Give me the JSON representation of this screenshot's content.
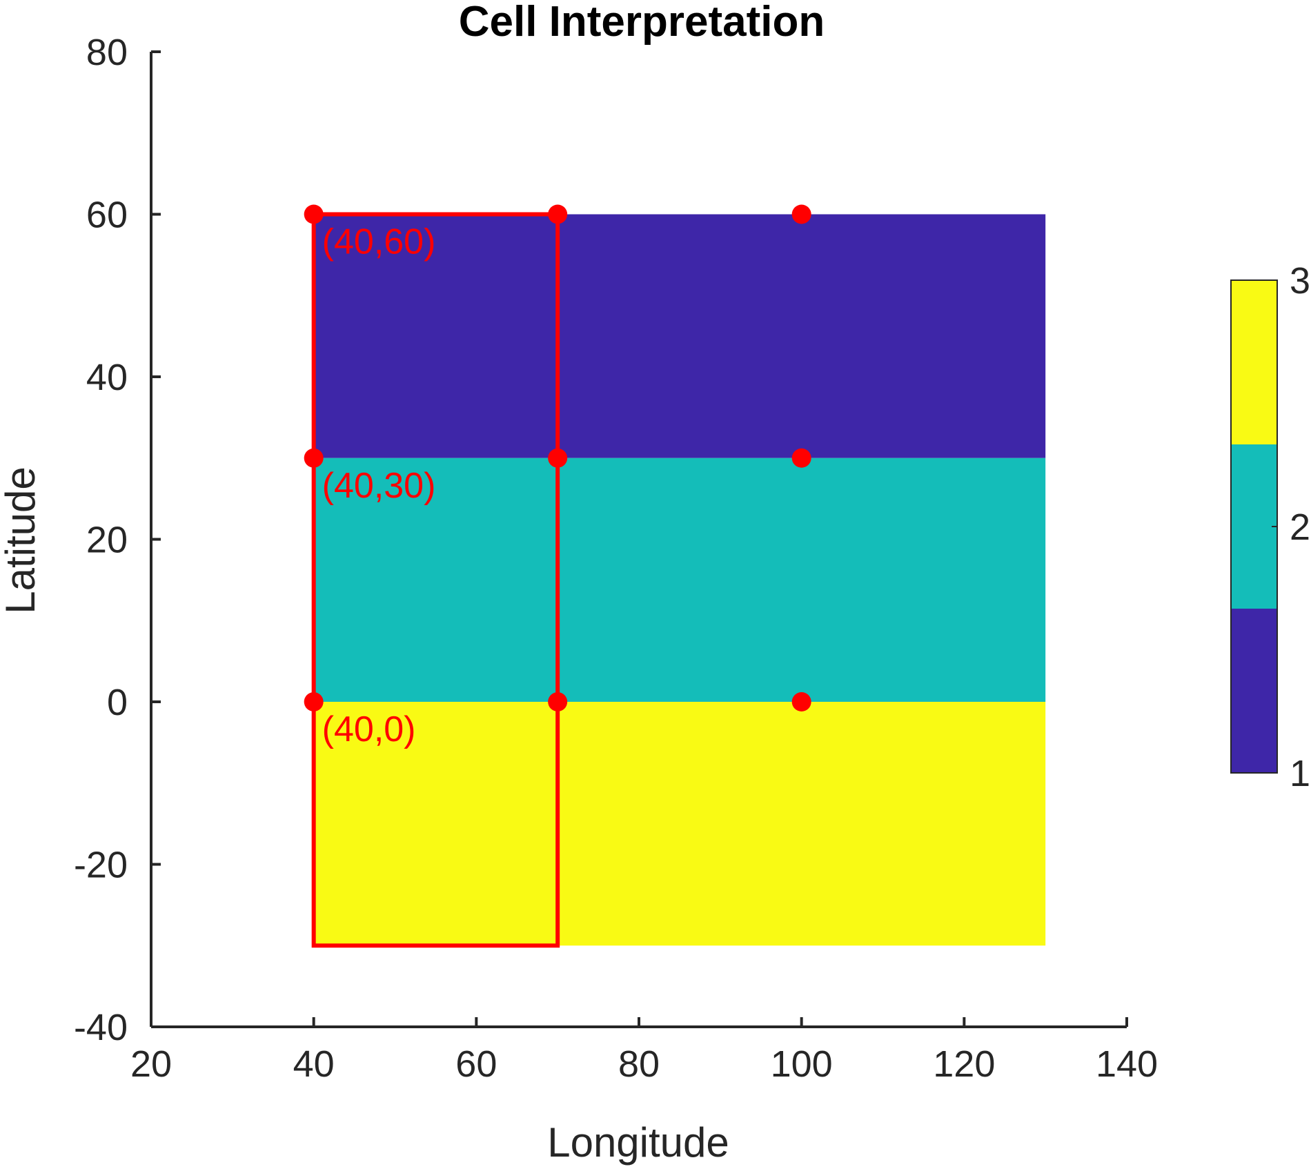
{
  "chart_data": {
    "type": "heatmap",
    "title": "Cell Interpretation",
    "xlabel": "Longitude",
    "ylabel": "Latitude",
    "xlim": [
      20,
      140
    ],
    "ylim": [
      -40,
      80
    ],
    "xticks": [
      "20",
      "40",
      "60",
      "80",
      "100",
      "120",
      "140"
    ],
    "yticks": [
      "-40",
      "-20",
      "0",
      "20",
      "40",
      "60",
      "80"
    ],
    "cells": [
      {
        "x0": 40,
        "x1": 130,
        "y0": 30,
        "y1": 60,
        "value": 1,
        "color": "#3e26a8"
      },
      {
        "x0": 40,
        "x1": 130,
        "y0": 0,
        "y1": 30,
        "value": 2,
        "color": "#14bdb9"
      },
      {
        "x0": 40,
        "x1": 130,
        "y0": -30,
        "y1": 0,
        "value": 3,
        "color": "#f9fa14"
      }
    ],
    "outline": {
      "x0": 40,
      "x1": 70,
      "y0": -30,
      "y1": 60,
      "color": "#ff0000"
    },
    "points": [
      {
        "x": 40,
        "y": 60
      },
      {
        "x": 70,
        "y": 60
      },
      {
        "x": 100,
        "y": 60
      },
      {
        "x": 40,
        "y": 30
      },
      {
        "x": 70,
        "y": 30
      },
      {
        "x": 100,
        "y": 30
      },
      {
        "x": 40,
        "y": 0
      },
      {
        "x": 70,
        "y": 0
      },
      {
        "x": 100,
        "y": 0
      }
    ],
    "point_color": "#ff0000",
    "annotations": [
      {
        "text": "(40,60)",
        "x": 40,
        "y": 60
      },
      {
        "text": "(40,30)",
        "x": 40,
        "y": 30
      },
      {
        "text": "(40,0)",
        "x": 40,
        "y": 0
      }
    ],
    "colorbar": {
      "range": [
        1,
        3
      ],
      "ticks": [
        "1",
        "2",
        "3"
      ],
      "colors": [
        "#3e26a8",
        "#14bdb9",
        "#f9fa14"
      ]
    }
  }
}
